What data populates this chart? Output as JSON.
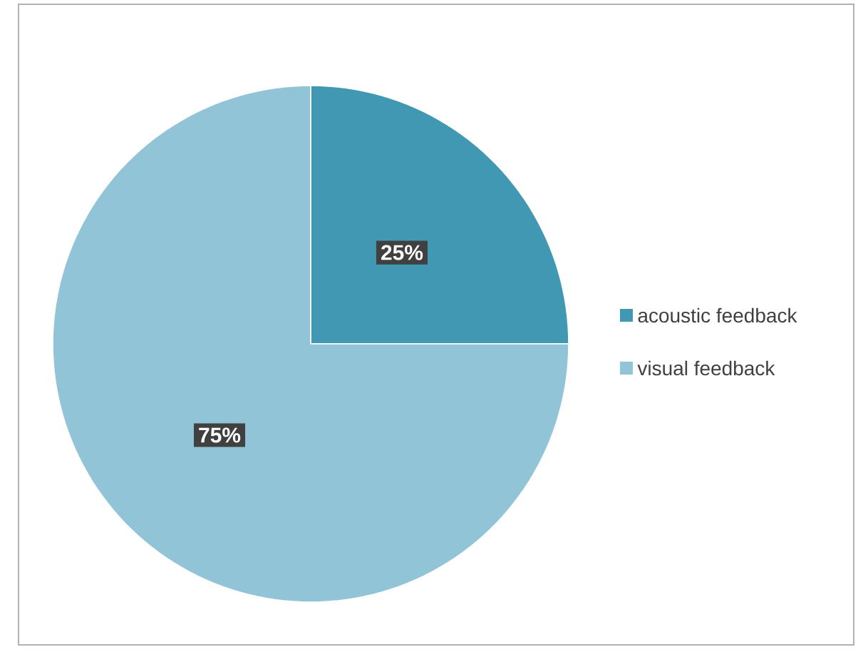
{
  "chart_data": {
    "type": "pie",
    "categories": [
      "acoustic feedback",
      "visual feedback"
    ],
    "values": [
      25,
      75
    ],
    "value_labels": [
      "25%",
      "75%"
    ],
    "colors": [
      "#4198b3",
      "#92c4d7"
    ],
    "legend": "right"
  }
}
